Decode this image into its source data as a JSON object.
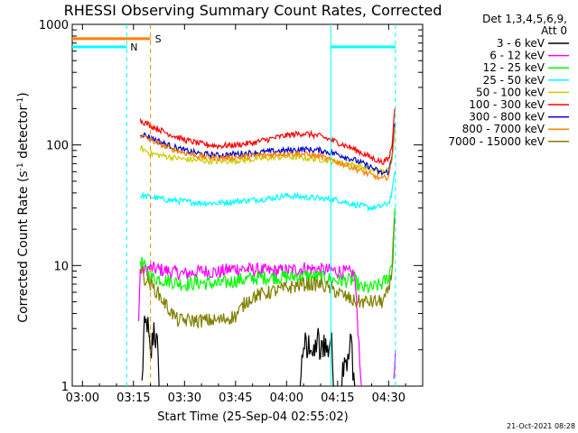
{
  "chart_data": {
    "type": "line",
    "title": "RHESSI Observing Summary Count Rates, Corrected",
    "xlabel": "Start Time (25-Sep-04 02:55:02)",
    "ylabel_main": "Corrected Count Rate (s",
    "ylabel_sup1": "-1",
    "ylabel_mid": " detector",
    "ylabel_sup2": "-1",
    "ylabel_end": ")",
    "y_scale": "log",
    "ylim": [
      1,
      1000
    ],
    "xlim_minutes": [
      -3,
      100
    ],
    "x_ticks": [
      {
        "min": 0,
        "label": "03:00"
      },
      {
        "min": 15,
        "label": "03:15"
      },
      {
        "min": 30,
        "label": "03:30"
      },
      {
        "min": 45,
        "label": "03:45"
      },
      {
        "min": 60,
        "label": "04:00"
      },
      {
        "min": 75,
        "label": "04:15"
      },
      {
        "min": 90,
        "label": "04:30"
      }
    ],
    "y_ticks": [
      {
        "v": 1,
        "label": "1"
      },
      {
        "v": 10,
        "label": "10"
      },
      {
        "v": 100,
        "label": "100"
      },
      {
        "v": 1000,
        "label": "1000"
      }
    ],
    "legend_header_1": "Det 1,3,4,5,6,9,",
    "legend_header_2": "Att 0",
    "series": [
      {
        "name": "3 - 6 keV",
        "color": "#000000",
        "points": [
          [
            17.5,
            1
          ],
          [
            18,
            2.5
          ],
          [
            19,
            3.5
          ],
          [
            20,
            1.6
          ],
          [
            21,
            3.2
          ],
          [
            22,
            2.0
          ],
          [
            22.5,
            1
          ],
          [
            null,
            null
          ],
          [
            64,
            1
          ],
          [
            65,
            2.4
          ],
          [
            66,
            1.8
          ],
          [
            67,
            2.5
          ],
          [
            68,
            1.6
          ],
          [
            69,
            2.6
          ],
          [
            70,
            1.7
          ],
          [
            71,
            2.5
          ],
          [
            72,
            1.9
          ],
          [
            73,
            2.6
          ],
          [
            74,
            1
          ],
          [
            null,
            null
          ],
          [
            76,
            1
          ],
          [
            77,
            2.0
          ],
          [
            78,
            1.5
          ],
          [
            79,
            2.4
          ],
          [
            80,
            1
          ]
        ]
      },
      {
        "name": "6 - 12 keV",
        "color": "#ff00ff",
        "points": [
          [
            16.5,
            3.5
          ],
          [
            17,
            9
          ],
          [
            20,
            9.5
          ],
          [
            25,
            9
          ],
          [
            30,
            8.5
          ],
          [
            35,
            9
          ],
          [
            40,
            8.8
          ],
          [
            45,
            9.5
          ],
          [
            50,
            9.2
          ],
          [
            55,
            9
          ],
          [
            60,
            9
          ],
          [
            65,
            9.5
          ],
          [
            70,
            9.2
          ],
          [
            75,
            9
          ],
          [
            80,
            8.5
          ],
          [
            81,
            3
          ],
          [
            82,
            1
          ],
          [
            null,
            null
          ],
          [
            91.5,
            1
          ],
          [
            92,
            2
          ]
        ]
      },
      {
        "name": "12 - 25 keV",
        "color": "#00ff00",
        "points": [
          [
            17,
            11
          ],
          [
            18,
            10
          ],
          [
            20,
            8
          ],
          [
            25,
            7.5
          ],
          [
            30,
            7
          ],
          [
            35,
            7.2
          ],
          [
            40,
            7
          ],
          [
            45,
            7.5
          ],
          [
            50,
            7.8
          ],
          [
            55,
            8
          ],
          [
            60,
            8
          ],
          [
            65,
            8.2
          ],
          [
            70,
            8
          ],
          [
            75,
            7.5
          ],
          [
            80,
            7.5
          ],
          [
            82,
            6.5
          ],
          [
            85,
            6.5
          ],
          [
            88,
            7
          ],
          [
            90,
            8
          ],
          [
            91,
            11
          ],
          [
            91.8,
            30
          ]
        ]
      },
      {
        "name": "25 - 50 keV",
        "color": "#00ffff",
        "points": [
          [
            17,
            38
          ],
          [
            20,
            37
          ],
          [
            25,
            35
          ],
          [
            30,
            34
          ],
          [
            35,
            33
          ],
          [
            40,
            33
          ],
          [
            45,
            34
          ],
          [
            50,
            35
          ],
          [
            55,
            36
          ],
          [
            60,
            38
          ],
          [
            65,
            37
          ],
          [
            70,
            36
          ],
          [
            75,
            35
          ],
          [
            80,
            32
          ],
          [
            85,
            30
          ],
          [
            88,
            31
          ],
          [
            90,
            33
          ],
          [
            91,
            40
          ],
          [
            91.8,
            60
          ]
        ]
      },
      {
        "name": "50 - 100 keV",
        "color": "#cccc00",
        "points": [
          [
            17,
            95
          ],
          [
            20,
            85
          ],
          [
            25,
            80
          ],
          [
            30,
            76
          ],
          [
            35,
            74
          ],
          [
            40,
            73
          ],
          [
            45,
            74
          ],
          [
            50,
            76
          ],
          [
            55,
            78
          ],
          [
            60,
            80
          ],
          [
            65,
            78
          ],
          [
            70,
            76
          ],
          [
            75,
            72
          ],
          [
            80,
            68
          ],
          [
            85,
            62
          ],
          [
            88,
            60
          ],
          [
            90,
            62
          ],
          [
            91,
            80
          ],
          [
            91.8,
            150
          ]
        ]
      },
      {
        "name": "100 - 300 keV",
        "color": "#ff0000",
        "points": [
          [
            17,
            160
          ],
          [
            20,
            145
          ],
          [
            25,
            125
          ],
          [
            30,
            110
          ],
          [
            35,
            102
          ],
          [
            40,
            98
          ],
          [
            45,
            100
          ],
          [
            50,
            104
          ],
          [
            55,
            112
          ],
          [
            60,
            120
          ],
          [
            65,
            125
          ],
          [
            70,
            118
          ],
          [
            75,
            105
          ],
          [
            80,
            92
          ],
          [
            85,
            78
          ],
          [
            88,
            72
          ],
          [
            90,
            76
          ],
          [
            91,
            100
          ],
          [
            91.8,
            200
          ]
        ]
      },
      {
        "name": "300 - 800 keV",
        "color": "#0000cc",
        "points": [
          [
            17,
            125
          ],
          [
            20,
            115
          ],
          [
            25,
            100
          ],
          [
            30,
            90
          ],
          [
            35,
            84
          ],
          [
            40,
            82
          ],
          [
            45,
            84
          ],
          [
            50,
            86
          ],
          [
            55,
            88
          ],
          [
            60,
            90
          ],
          [
            65,
            92
          ],
          [
            70,
            90
          ],
          [
            75,
            84
          ],
          [
            80,
            75
          ],
          [
            85,
            65
          ],
          [
            88,
            58
          ],
          [
            90,
            60
          ],
          [
            91,
            80
          ],
          [
            91.8,
            150
          ]
        ]
      },
      {
        "name": "800 - 7000 keV",
        "color": "#ff8000",
        "points": [
          [
            17,
            120
          ],
          [
            20,
            110
          ],
          [
            25,
            95
          ],
          [
            30,
            86
          ],
          [
            35,
            80
          ],
          [
            40,
            78
          ],
          [
            45,
            79
          ],
          [
            50,
            81
          ],
          [
            55,
            83
          ],
          [
            60,
            85
          ],
          [
            65,
            84
          ],
          [
            70,
            80
          ],
          [
            75,
            72
          ],
          [
            80,
            64
          ],
          [
            85,
            56
          ],
          [
            88,
            52
          ],
          [
            90,
            55
          ],
          [
            91,
            75
          ],
          [
            91.8,
            140
          ]
        ]
      },
      {
        "name": "7000 - 15000 keV",
        "color": "#808000",
        "points": [
          [
            17,
            10
          ],
          [
            18,
            8
          ],
          [
            20,
            7
          ],
          [
            22,
            6
          ],
          [
            25,
            4.5
          ],
          [
            28,
            3.5
          ],
          [
            30,
            3.5
          ],
          [
            35,
            3.5
          ],
          [
            40,
            3.5
          ],
          [
            45,
            3.8
          ],
          [
            48,
            5
          ],
          [
            50,
            5.5
          ],
          [
            55,
            6
          ],
          [
            60,
            6.5
          ],
          [
            65,
            7
          ],
          [
            70,
            7
          ],
          [
            75,
            6
          ],
          [
            80,
            5
          ],
          [
            85,
            5
          ],
          [
            88,
            5
          ],
          [
            90,
            6
          ],
          [
            91,
            9
          ],
          [
            91.8,
            25
          ]
        ]
      }
    ],
    "attenuator_bars": [
      {
        "color": "#00ffff",
        "y": 650,
        "x0": -3,
        "x1": 13
      },
      {
        "color": "#00ffff",
        "y": 650,
        "x0": 73,
        "x1": 92
      }
    ],
    "flag_bars": [
      {
        "color": "#ff8000",
        "y": 760,
        "x0": -3,
        "x1": 20,
        "label": "S"
      }
    ],
    "vertical_lines": [
      {
        "min": 13,
        "color": "#00ffff",
        "style": "dashed",
        "label": "N"
      },
      {
        "min": 20,
        "color": "#ff8000",
        "style": "dashed",
        "label": ""
      },
      {
        "min": 73,
        "color": "#00ffff",
        "style": "solid",
        "label": ""
      },
      {
        "min": 92,
        "color": "#00ffff",
        "style": "dashed",
        "label": ""
      }
    ],
    "footer_timestamp": "21-Oct-2021 08:28"
  }
}
